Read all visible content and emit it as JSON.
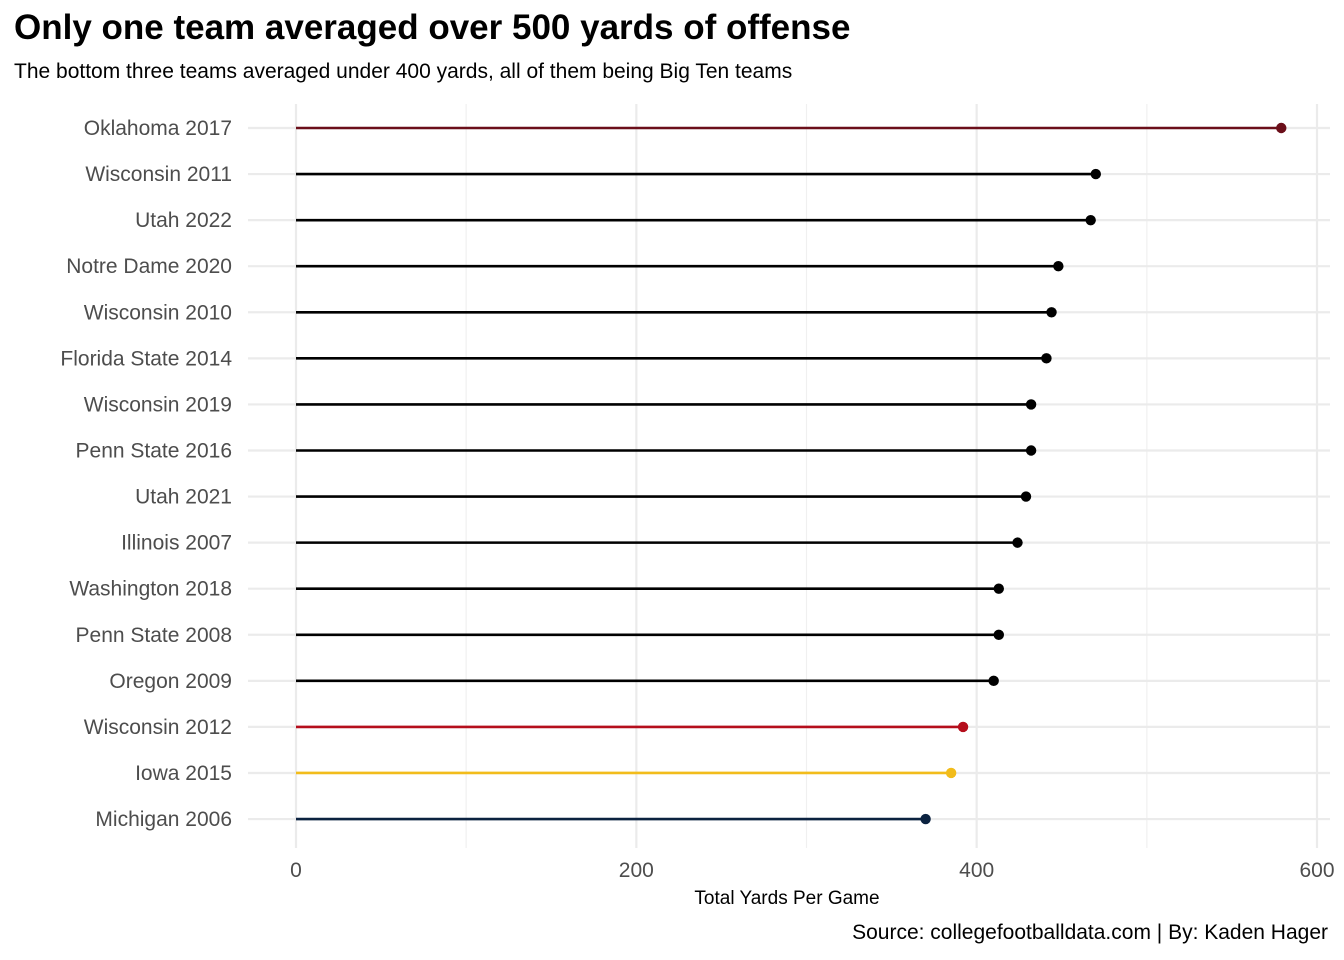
{
  "title": "Only one team averaged over 500 yards of offense",
  "subtitle": "The bottom three teams averaged under 400 yards, all of them being Big Ten teams",
  "caption": "Source: collegefootballdata.com | By: Kaden Hager",
  "chart_data": {
    "type": "lollipop",
    "orientation": "horizontal",
    "title": "Only one team averaged over 500 yards of offense",
    "subtitle": "The bottom three teams averaged under 400 yards, all of them being Big Ten teams",
    "xlabel": "Total Yards Per Game",
    "ylabel": "",
    "xlim": [
      0,
      600
    ],
    "x_ticks": [
      0,
      200,
      400,
      600
    ],
    "grid": true,
    "legend": "none",
    "points": [
      {
        "label": "Oklahoma 2017",
        "value": 579,
        "color": "#6b0f1a"
      },
      {
        "label": "Wisconsin 2011",
        "value": 470,
        "color": "#000000"
      },
      {
        "label": "Utah 2022",
        "value": 467,
        "color": "#000000"
      },
      {
        "label": "Notre Dame 2020",
        "value": 448,
        "color": "#000000"
      },
      {
        "label": "Wisconsin 2010",
        "value": 444,
        "color": "#000000"
      },
      {
        "label": "Florida State 2014",
        "value": 441,
        "color": "#000000"
      },
      {
        "label": "Wisconsin 2019",
        "value": 432,
        "color": "#000000"
      },
      {
        "label": "Penn State 2016",
        "value": 432,
        "color": "#000000"
      },
      {
        "label": "Utah 2021",
        "value": 429,
        "color": "#000000"
      },
      {
        "label": "Illinois 2007",
        "value": 424,
        "color": "#000000"
      },
      {
        "label": "Washington 2018",
        "value": 413,
        "color": "#000000"
      },
      {
        "label": "Penn State 2008",
        "value": 413,
        "color": "#000000"
      },
      {
        "label": "Oregon 2009",
        "value": 410,
        "color": "#000000"
      },
      {
        "label": "Wisconsin 2012",
        "value": 392,
        "color": "#b50e1c"
      },
      {
        "label": "Iowa 2015",
        "value": 385,
        "color": "#f2bc1b"
      },
      {
        "label": "Michigan 2006",
        "value": 370,
        "color": "#0b2240"
      }
    ]
  }
}
